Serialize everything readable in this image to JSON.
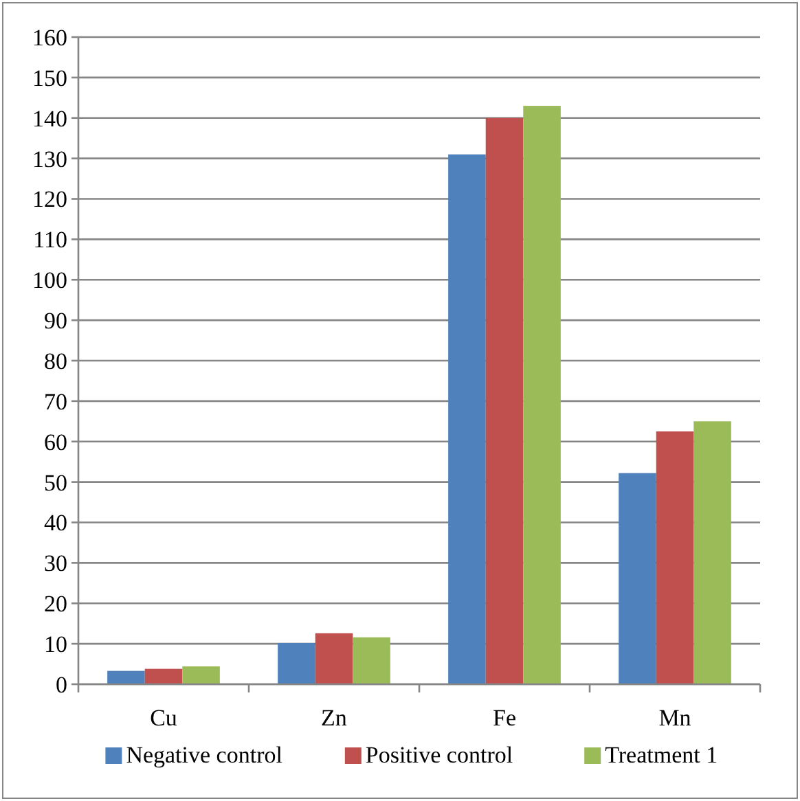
{
  "chart_data": {
    "type": "bar",
    "categories": [
      "Cu",
      "Zn",
      "Fe",
      "Mn"
    ],
    "series": [
      {
        "name": "Negative control",
        "color": "#4f81bd",
        "values": [
          3.3,
          10.2,
          131,
          52.2
        ]
      },
      {
        "name": "Positive control",
        "color": "#c0504d",
        "values": [
          3.8,
          12.6,
          140,
          62.5
        ]
      },
      {
        "name": "Treatment 1",
        "color": "#9bbb59",
        "values": [
          4.4,
          11.6,
          143,
          65
        ]
      }
    ],
    "ylim": [
      0,
      160
    ],
    "yticks": [
      0,
      10,
      20,
      30,
      40,
      50,
      60,
      70,
      80,
      90,
      100,
      110,
      120,
      130,
      140,
      150,
      160
    ],
    "grid": "y",
    "legend": "bottom"
  }
}
